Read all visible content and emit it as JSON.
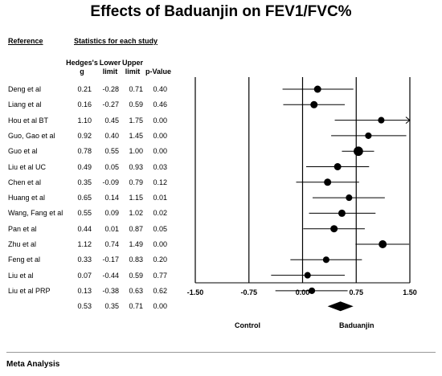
{
  "chart_data": {
    "type": "forest",
    "title": "Effects of Baduanjin on FEV1/FVC%",
    "headers": {
      "reference": "Reference",
      "stats_group": "Statistics for each study",
      "hedges_1": "Hedges's",
      "hedges_2": "g",
      "lower_1": "Lower",
      "lower_2": "limit",
      "upper_1": "Upper",
      "upper_2": "limit",
      "pvalue": "p-Value"
    },
    "studies": [
      {
        "name": "Deng et al",
        "g": "0.21",
        "lower": "-0.28",
        "upper": "0.71",
        "p": "0.40"
      },
      {
        "name": "Liang et al",
        "g": "0.16",
        "lower": "-0.27",
        "upper": "0.59",
        "p": "0.46"
      },
      {
        "name": "Hou et al BT",
        "g": "1.10",
        "lower": "0.45",
        "upper": "1.75",
        "p": "0.00"
      },
      {
        "name": "Guo, Gao et al",
        "g": "0.92",
        "lower": "0.40",
        "upper": "1.45",
        "p": "0.00"
      },
      {
        "name": "Guo et al",
        "g": "0.78",
        "lower": "0.55",
        "upper": "1.00",
        "p": "0.00"
      },
      {
        "name": "Liu et al UC",
        "g": "0.49",
        "lower": "0.05",
        "upper": "0.93",
        "p": "0.03"
      },
      {
        "name": "Chen et al",
        "g": "0.35",
        "lower": "-0.09",
        "upper": "0.79",
        "p": "0.12"
      },
      {
        "name": "Huang et al",
        "g": "0.65",
        "lower": "0.14",
        "upper": "1.15",
        "p": "0.01"
      },
      {
        "name": "Wang, Fang et al",
        "g": "0.55",
        "lower": "0.09",
        "upper": "1.02",
        "p": "0.02"
      },
      {
        "name": "Pan et al",
        "g": "0.44",
        "lower": "0.01",
        "upper": "0.87",
        "p": "0.05"
      },
      {
        "name": "Zhu et al",
        "g": "1.12",
        "lower": "0.74",
        "upper": "1.49",
        "p": "0.00"
      },
      {
        "name": "Feng et al",
        "g": "0.33",
        "lower": "-0.17",
        "upper": "0.83",
        "p": "0.20"
      },
      {
        "name": "Liu et al",
        "g": "0.07",
        "lower": "-0.44",
        "upper": "0.59",
        "p": "0.77"
      },
      {
        "name": "Liu et al PRP",
        "g": "0.13",
        "lower": "-0.38",
        "upper": "0.63",
        "p": "0.62"
      }
    ],
    "pooled": {
      "g": "0.53",
      "lower": "0.35",
      "upper": "0.71",
      "p": "0.00"
    },
    "marker_weights": [
      1,
      1,
      0.9,
      0.9,
      1.3,
      1,
      1,
      0.9,
      1,
      1,
      1.1,
      0.9,
      0.9,
      0.9
    ],
    "x_ticks": [
      "-1.50",
      "-0.75",
      "0.00",
      "0.75",
      "1.50"
    ],
    "xlim": [
      -1.5,
      1.5
    ],
    "favors_left": "Control",
    "favors_right": "Baduanjin"
  },
  "footer": "Meta Analysis"
}
